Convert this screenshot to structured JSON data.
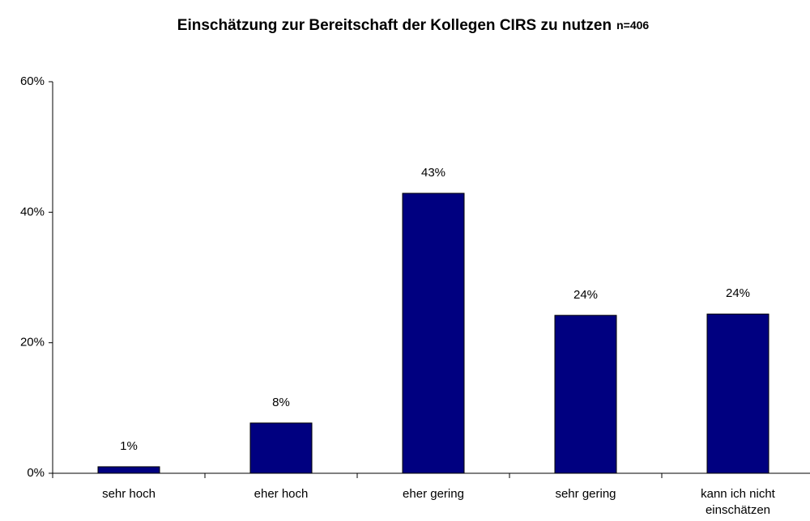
{
  "chart_data": {
    "type": "bar",
    "title": "Einschätzung zur Bereitschaft der Kollegen CIRS zu nutzen",
    "subtitle": "n=406",
    "categories": [
      "sehr hoch",
      "eher hoch",
      "eher gering",
      "sehr gering",
      "kann ich nicht einschätzen"
    ],
    "values": [
      1,
      7.7,
      42.9,
      24.2,
      24.4
    ],
    "value_labels": [
      "1%",
      "8%",
      "43%",
      "24%",
      "24%"
    ],
    "color": "#000080",
    "ylim": [
      0,
      60
    ],
    "yticks": [
      {
        "value": 0,
        "label": "0%"
      },
      {
        "value": 20,
        "label": "20%"
      },
      {
        "value": 40,
        "label": "40%"
      },
      {
        "value": 60,
        "label": "60%"
      }
    ],
    "grid": false
  }
}
